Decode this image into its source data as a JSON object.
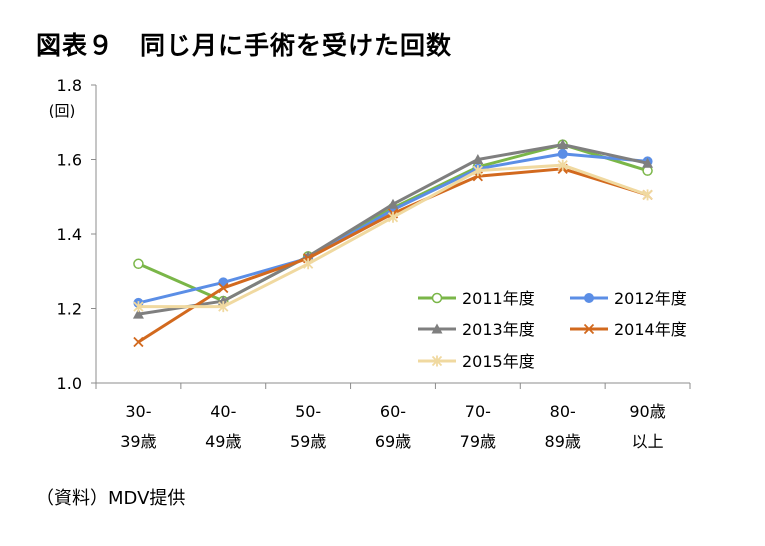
{
  "title": "図表９　同じ月に手術を受けた回数",
  "source": "（資料）MDV提供",
  "chart_data": {
    "type": "line",
    "y_unit": "(回)",
    "ylim": [
      1.0,
      1.8
    ],
    "yticks": [
      "1.0",
      "1.2",
      "1.4",
      "1.6",
      "1.8"
    ],
    "grid": false,
    "legend_position": "inside-bottom-right",
    "categories": [
      [
        "30-",
        "39歳"
      ],
      [
        "40-",
        "49歳"
      ],
      [
        "50-",
        "59歳"
      ],
      [
        "60-",
        "69歳"
      ],
      [
        "70-",
        "79歳"
      ],
      [
        "80-",
        "89歳"
      ],
      [
        "90歳",
        "以上"
      ]
    ],
    "series": [
      {
        "name": "2011年度",
        "color": "#7ab648",
        "marker": "circle-open",
        "values": [
          1.32,
          1.22,
          1.34,
          1.47,
          1.58,
          1.64,
          1.57
        ]
      },
      {
        "name": "2012年度",
        "color": "#5b8ee6",
        "marker": "circle",
        "values": [
          1.215,
          1.27,
          1.335,
          1.465,
          1.575,
          1.615,
          1.595
        ]
      },
      {
        "name": "2013年度",
        "color": "#7f7f7f",
        "marker": "triangle",
        "values": [
          1.185,
          1.22,
          1.34,
          1.48,
          1.6,
          1.64,
          1.59
        ]
      },
      {
        "name": "2014年度",
        "color": "#d2691e",
        "marker": "x",
        "values": [
          1.11,
          1.255,
          1.335,
          1.455,
          1.555,
          1.575,
          1.505
        ]
      },
      {
        "name": "2015年度",
        "color": "#f0d9a0",
        "marker": "star",
        "values": [
          1.205,
          1.205,
          1.32,
          1.445,
          1.57,
          1.585,
          1.505
        ]
      }
    ]
  }
}
